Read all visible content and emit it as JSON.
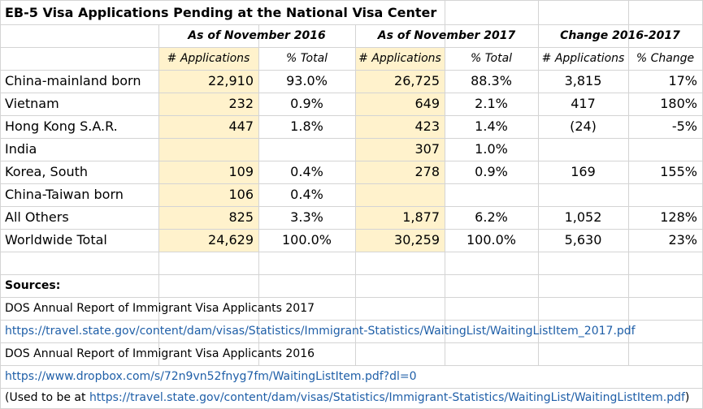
{
  "title": "EB-5 Visa Applications Pending at the National Visa Center",
  "groups": {
    "nov2016": "As of November 2016",
    "nov2017": "As of November 2017",
    "change": "Change 2016-2017"
  },
  "subheaders": {
    "apps_2016": "# Applications",
    "pct_2016": "% Total",
    "apps_2017": "# Applications",
    "pct_2017": "% Total",
    "apps_change": "# Applications",
    "pct_change": "% Change"
  },
  "rows": [
    {
      "country": "China-mainland born",
      "apps2016": "22,910",
      "pct2016": "93.0%",
      "apps2017": "26,725",
      "pct2017": "88.3%",
      "chg": "3,815",
      "chgPct": "17%"
    },
    {
      "country": "Vietnam",
      "apps2016": "232",
      "pct2016": "0.9%",
      "apps2017": "649",
      "pct2017": "2.1%",
      "chg": "417",
      "chgPct": "180%"
    },
    {
      "country": "Hong Kong S.A.R.",
      "apps2016": "447",
      "pct2016": "1.8%",
      "apps2017": "423",
      "pct2017": "1.4%",
      "chg": "(24)",
      "chgPct": "-5%"
    },
    {
      "country": "India",
      "apps2016": "",
      "pct2016": "",
      "apps2017": "307",
      "pct2017": "1.0%",
      "chg": "",
      "chgPct": ""
    },
    {
      "country": "Korea, South",
      "apps2016": "109",
      "pct2016": "0.4%",
      "apps2017": "278",
      "pct2017": "0.9%",
      "chg": "169",
      "chgPct": "155%"
    },
    {
      "country": "China-Taiwan born",
      "apps2016": "106",
      "pct2016": "0.4%",
      "apps2017": "",
      "pct2017": "",
      "chg": "",
      "chgPct": ""
    },
    {
      "country": "All Others",
      "apps2016": "825",
      "pct2016": "3.3%",
      "apps2017": "1,877",
      "pct2017": "6.2%",
      "chg": "1,052",
      "chgPct": "128%"
    },
    {
      "country": "Worldwide Total",
      "apps2016": "24,629",
      "pct2016": "100.0%",
      "apps2017": "30,259",
      "pct2017": "100.0%",
      "chg": "5,630",
      "chgPct": "23%"
    }
  ],
  "sources": {
    "heading": "Sources:",
    "line1": "DOS Annual Report of Immigrant Visa Applicants 2017",
    "link1": "https://travel.state.gov/content/dam/visas/Statistics/Immigrant-Statistics/WaitingList/WaitingListItem_2017.pdf",
    "line2": "DOS Annual Report of Immigrant Visa Applicants 2016",
    "link2": "https://www.dropbox.com/s/72n9vn52fnyg7fm/WaitingListItem.pdf?dl=0",
    "note_prefix": "(Used to be at ",
    "note_link": "https://travel.state.gov/content/dam/visas/Statistics/Immigrant-Statistics/WaitingList/WaitingListItem.pdf",
    "note_suffix": ")"
  },
  "colors": {
    "highlight": "#fff2cc",
    "gridline": "#d4d4d4",
    "link": "#1f5fa8"
  }
}
